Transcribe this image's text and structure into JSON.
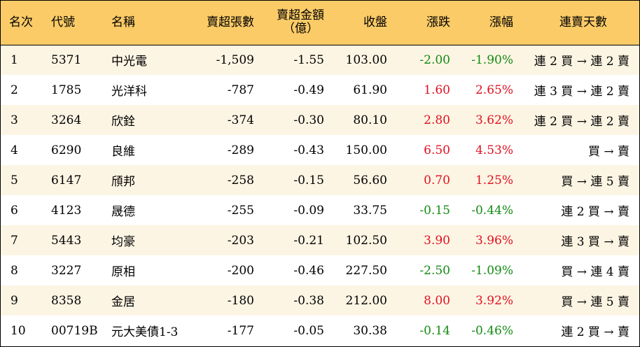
{
  "colors": {
    "header_bg": "#fbcb67",
    "row_alt_bg": "#fdf5e4",
    "up": "#e01020",
    "down": "#138a13"
  },
  "headers": {
    "rank": "名次",
    "code": "代號",
    "name": "名稱",
    "net_sell_lots": "賣超張數",
    "net_sell_amount_line1": "賣超金額",
    "net_sell_amount_line2": "（億）",
    "close": "收盤",
    "change": "漲跌",
    "change_pct": "漲幅",
    "streak": "連賣天數"
  },
  "rows": [
    {
      "rank": "1",
      "code": "5371",
      "name": "中光電",
      "lots": "-1,509",
      "amount": "-1.55",
      "close": "103.00",
      "change": "-2.00",
      "pct": "-1.90%",
      "dir": "down",
      "streak": "連 2 買 → 連 2 賣"
    },
    {
      "rank": "2",
      "code": "1785",
      "name": "光洋科",
      "lots": "-787",
      "amount": "-0.49",
      "close": "61.90",
      "change": "1.60",
      "pct": "2.65%",
      "dir": "up",
      "streak": "連 3 買 → 連 2 賣"
    },
    {
      "rank": "3",
      "code": "3264",
      "name": "欣銓",
      "lots": "-374",
      "amount": "-0.30",
      "close": "80.10",
      "change": "2.80",
      "pct": "3.62%",
      "dir": "up",
      "streak": "連 2 買 → 連 2 賣"
    },
    {
      "rank": "4",
      "code": "6290",
      "name": "良維",
      "lots": "-289",
      "amount": "-0.43",
      "close": "150.00",
      "change": "6.50",
      "pct": "4.53%",
      "dir": "up",
      "streak": "買 → 賣"
    },
    {
      "rank": "5",
      "code": "6147",
      "name": "頎邦",
      "lots": "-258",
      "amount": "-0.15",
      "close": "56.60",
      "change": "0.70",
      "pct": "1.25%",
      "dir": "up",
      "streak": "買 → 連 5 賣"
    },
    {
      "rank": "6",
      "code": "4123",
      "name": "晟德",
      "lots": "-255",
      "amount": "-0.09",
      "close": "33.75",
      "change": "-0.15",
      "pct": "-0.44%",
      "dir": "down",
      "streak": "連 2 買 → 賣"
    },
    {
      "rank": "7",
      "code": "5443",
      "name": "均豪",
      "lots": "-203",
      "amount": "-0.21",
      "close": "102.50",
      "change": "3.90",
      "pct": "3.96%",
      "dir": "up",
      "streak": "連 3 買 → 賣"
    },
    {
      "rank": "8",
      "code": "3227",
      "name": "原相",
      "lots": "-200",
      "amount": "-0.46",
      "close": "227.50",
      "change": "-2.50",
      "pct": "-1.09%",
      "dir": "down",
      "streak": "買 → 連 4 賣"
    },
    {
      "rank": "9",
      "code": "8358",
      "name": "金居",
      "lots": "-180",
      "amount": "-0.38",
      "close": "212.00",
      "change": "8.00",
      "pct": "3.92%",
      "dir": "up",
      "streak": "買 → 連 5 賣"
    },
    {
      "rank": "10",
      "code": "00719B",
      "name": "元大美債1-3",
      "lots": "-177",
      "amount": "-0.05",
      "close": "30.38",
      "change": "-0.14",
      "pct": "-0.46%",
      "dir": "down",
      "streak": "連 2 買 → 賣"
    }
  ]
}
